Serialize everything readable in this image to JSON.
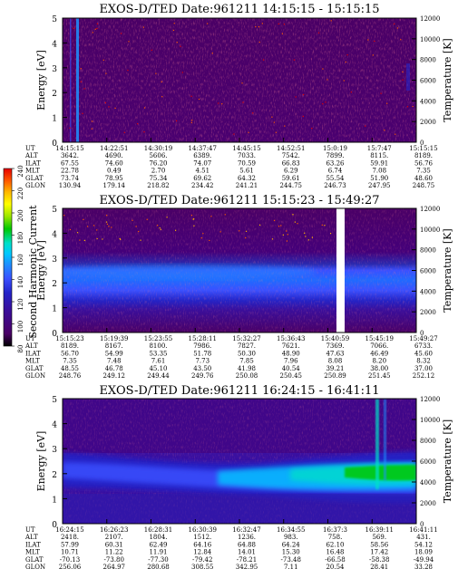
{
  "colorbar": {
    "label": "Second Harmonic Current",
    "ticks": [
      "80",
      "100",
      "120",
      "140",
      "160",
      "180",
      "200",
      "220",
      "240"
    ],
    "colors": [
      "#000000",
      "#4a0066",
      "#3a0e9a",
      "#2424c8",
      "#3a50ff",
      "#1e90ff",
      "#00c8ff",
      "#00e0c8",
      "#00c800",
      "#9ae600",
      "#ffff00",
      "#ffb400",
      "#ff5a00",
      "#e60000"
    ]
  },
  "axes": {
    "ylabel_left": "Energy [eV]",
    "ylabel_right": "Temperature [K]",
    "y_ticks": [
      "0",
      "1",
      "2",
      "3",
      "4",
      "5"
    ],
    "right_ticks": [
      "0",
      "2000",
      "4000",
      "6000",
      "8000",
      "10000",
      "12000"
    ],
    "row_labels": [
      "UT",
      "ALT",
      "ILAT",
      "MLT",
      "GLAT",
      "GLON"
    ]
  },
  "chart_data": [
    {
      "type": "heatmap",
      "title": "EXOS-D/TED   Date:961211   14:15:15 - 15:15:15",
      "ylabel": "Energy [eV]",
      "ylim": [
        0,
        5
      ],
      "y2label": "Temperature [K]",
      "y2lim": [
        0,
        12000
      ],
      "background_level": "low (purple) across all energies",
      "columns": [
        [
          "14:15:15",
          "3642.",
          "67.55",
          "22.78",
          "73.74",
          "130.94"
        ],
        [
          "14:22:51",
          "4690.",
          "74.60",
          "0.49",
          "78.95",
          "179.14"
        ],
        [
          "14:30:19",
          "5606.",
          "76.20",
          "2.70",
          "75.34",
          "218.82"
        ],
        [
          "14:37:47",
          "6389.",
          "74.07",
          "4.51",
          "69.62",
          "234.42"
        ],
        [
          "14:45:15",
          "7033.",
          "70.59",
          "5.61",
          "64.32",
          "241.21"
        ],
        [
          "14:52:51",
          "7542.",
          "66.83",
          "6.29",
          "59.61",
          "244.75"
        ],
        [
          "15:0:19",
          "7899.",
          "63.26",
          "6.74",
          "55.54",
          "246.73"
        ],
        [
          "15:7:47",
          "8115.",
          "59.91",
          "7.08",
          "51.90",
          "247.95"
        ],
        [
          "15:15:15",
          "8189.",
          "56.76",
          "7.35",
          "48.60",
          "248.75"
        ]
      ]
    },
    {
      "type": "heatmap",
      "title": "EXOS-D/TED   Date:961211   15:15:23 - 15:49:27",
      "ylabel": "Energy [eV]",
      "ylim": [
        0,
        5
      ],
      "y2label": "Temperature [K]",
      "y2lim": [
        0,
        12000
      ],
      "band_center_ev": 2.2,
      "band_level": "medium (blue)",
      "data_gap": "15:41-15:43",
      "columns": [
        [
          "15:15:23",
          "8189.",
          "56.70",
          "7.35",
          "48.55",
          "248.76"
        ],
        [
          "15:19:39",
          "8167.",
          "54.99",
          "7.48",
          "46.78",
          "249.12"
        ],
        [
          "15:23:55",
          "8100.",
          "53.35",
          "7.61",
          "45.10",
          "249.44"
        ],
        [
          "15:28:11",
          "7986.",
          "51.78",
          "7.73",
          "43.50",
          "249.76"
        ],
        [
          "15:32:27",
          "7827.",
          "50.30",
          "7.85",
          "41.98",
          "250.08"
        ],
        [
          "15:36:43",
          "7621.",
          "48.90",
          "7.96",
          "40.54",
          "250.45"
        ],
        [
          "15:40:59",
          "7369.",
          "47.63",
          "8.08",
          "39.21",
          "250.89"
        ],
        [
          "15:45:19",
          "7066.",
          "46.49",
          "8.20",
          "38.00",
          "251.45"
        ],
        [
          "15:49:27",
          "6733.",
          "45.60",
          "8.32",
          "37.00",
          "252.12"
        ]
      ]
    },
    {
      "type": "heatmap",
      "title": "EXOS-D/TED   Date:961211   16:24:15 - 16:41:11",
      "ylabel": "Energy [eV]",
      "ylim": [
        0,
        5
      ],
      "y2label": "Temperature [K]",
      "y2lim": [
        0,
        12000
      ],
      "band_center_ev": 2.2,
      "band_level": "increasing toward end (green/yellow)",
      "columns": [
        [
          "16:24:15",
          "2418.",
          "57.99",
          "10.71",
          "-70.13",
          "256.06"
        ],
        [
          "16:26:23",
          "2107.",
          "60.31",
          "11.22",
          "-73.80",
          "264.97"
        ],
        [
          "16:28:31",
          "1804.",
          "62.49",
          "11.91",
          "-77.30",
          "280.68"
        ],
        [
          "16:30:39",
          "1512.",
          "64.16",
          "12.84",
          "-79.42",
          "308.55"
        ],
        [
          "16:32:47",
          "1236.",
          "64.88",
          "14.01",
          "-78.21",
          "342.95"
        ],
        [
          "16:34:55",
          "983.",
          "64.24",
          "15.30",
          "-73.48",
          "7.11"
        ],
        [
          "16:37:3",
          "758.",
          "62.10",
          "16.48",
          "-66.58",
          "20.54"
        ],
        [
          "16:39:11",
          "569.",
          "58.56",
          "17.42",
          "-58.38",
          "28.41"
        ],
        [
          "16:41:11",
          "431.",
          "54.12",
          "18.09",
          "-49.94",
          "33.28"
        ]
      ]
    }
  ]
}
